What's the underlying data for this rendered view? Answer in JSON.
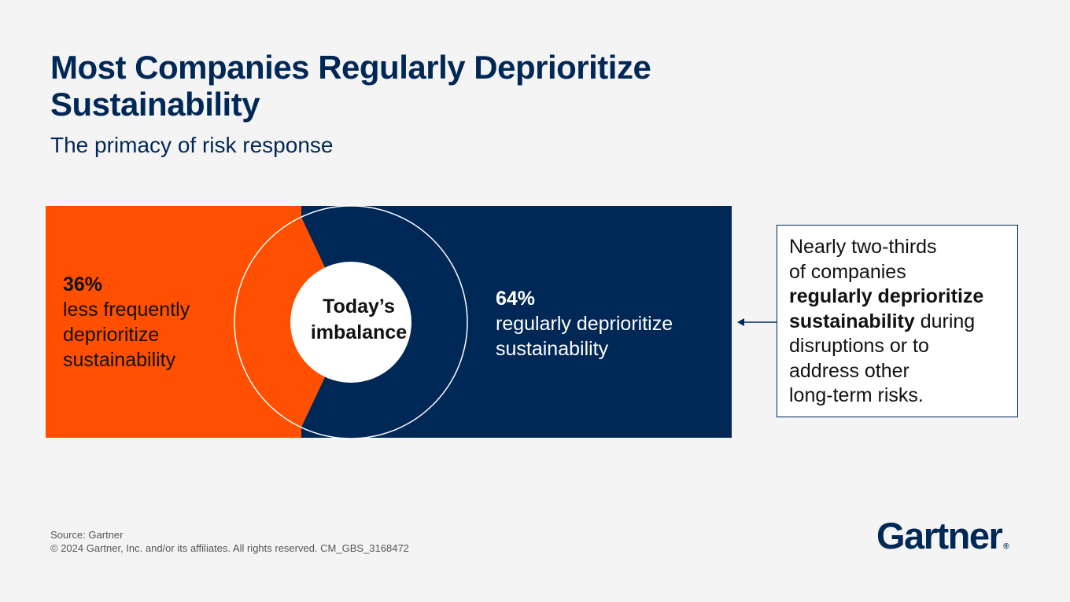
{
  "header": {
    "title_line1": "Most Companies Regularly Deprioritize",
    "title_line2": "Sustainability",
    "subtitle": "The primacy of risk response"
  },
  "chart_data": {
    "type": "pie",
    "center_label_line1": "Today’s",
    "center_label_line2": "imbalance",
    "slices": [
      {
        "value": 36,
        "pct_label": "36%",
        "label_lines": [
          "less frequently",
          "deprioritize",
          "sustainability"
        ],
        "color": "#fe5000"
      },
      {
        "value": 64,
        "pct_label": "64%",
        "label_lines": [
          "regularly deprioritize",
          "sustainability"
        ],
        "color": "#002856"
      }
    ]
  },
  "callout": {
    "line1": "Nearly two-thirds",
    "line2": "of companies",
    "bold1": "regularly deprioritize",
    "bold2": "sustainability",
    "after_bold": " during",
    "line5": "disruptions or to",
    "line6": "address other",
    "line7": "long-term risks."
  },
  "footer": {
    "source": "Source: Gartner",
    "copyright": "© 2024 Gartner, Inc. and/or its affiliates. All rights reserved. CM_GBS_3168472"
  },
  "logo": {
    "text": "Gartner",
    "mark": "®"
  },
  "colors": {
    "navy": "#002856",
    "orange": "#fe5000",
    "background": "#f4f4f4"
  }
}
